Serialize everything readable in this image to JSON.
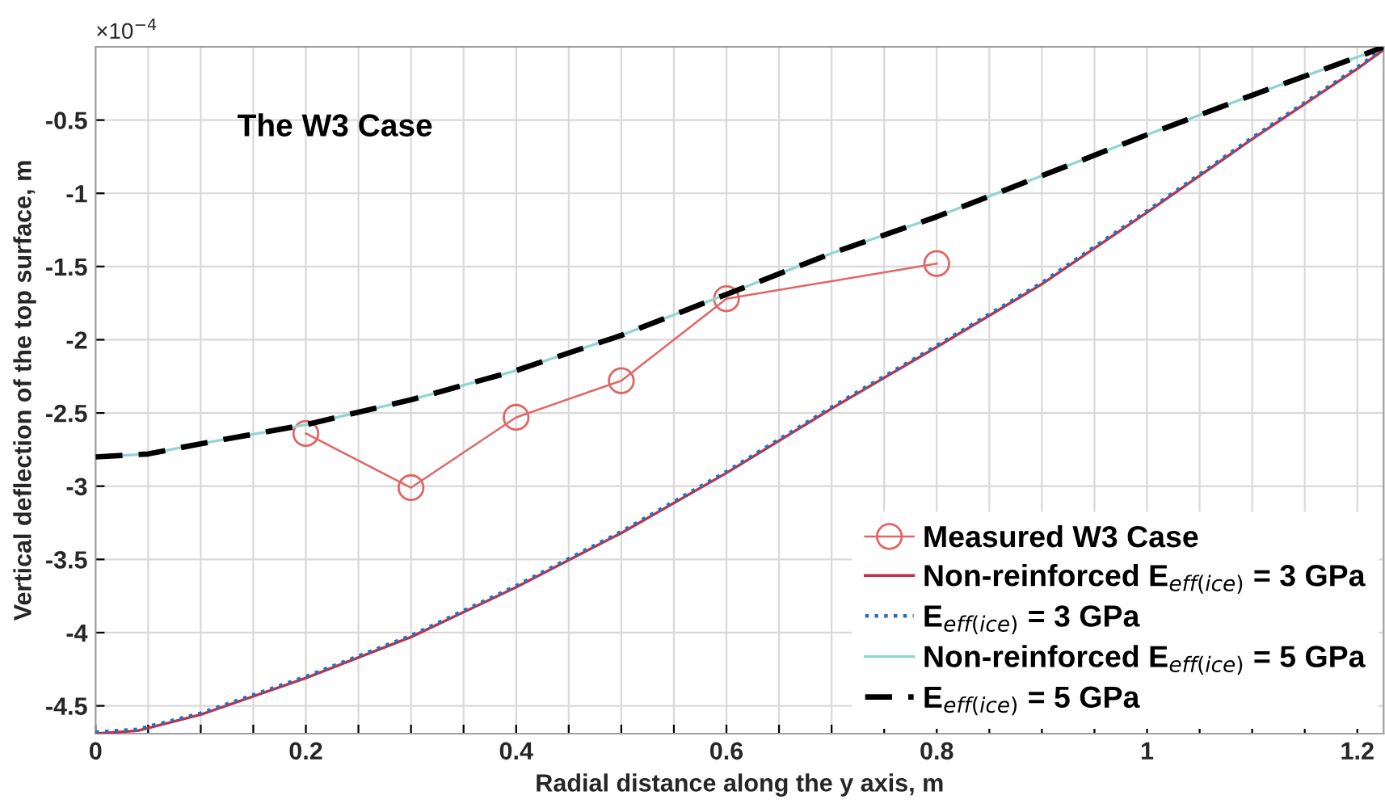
{
  "chart_data": {
    "type": "line",
    "title": "The W3 Case",
    "xlabel": "Radial distance along the y axis, m",
    "ylabel": "Vertical deflection of the top surface, m",
    "annotations": [
      "×10$^{−4}$"
    ],
    "xlim": [
      0,
      1.225
    ],
    "ylim": [
      -4.69,
      0
    ],
    "xticks": [
      0,
      {
        "value": 0.05,
        "label": null
      },
      {
        "value": 0.1,
        "label": null
      },
      {
        "value": 0.15,
        "label": null
      },
      0.2,
      {
        "value": 0.25,
        "label": null
      },
      {
        "value": 0.3,
        "label": null
      },
      {
        "value": 0.35,
        "label": null
      },
      0.4,
      {
        "value": 0.45,
        "label": null
      },
      {
        "value": 0.5,
        "label": null
      },
      {
        "value": 0.55,
        "label": null
      },
      0.6,
      {
        "value": 0.65,
        "label": null
      },
      {
        "value": 0.7,
        "label": null
      },
      {
        "value": 0.75,
        "label": null
      },
      0.8,
      {
        "value": 0.85,
        "label": null
      },
      {
        "value": 0.9,
        "label": null
      },
      {
        "value": 0.95,
        "label": null
      },
      1,
      {
        "value": 1.05,
        "label": null
      },
      {
        "value": 1.1,
        "label": null
      },
      {
        "value": 1.15,
        "label": null
      },
      1.2
    ],
    "yticks": [
      -4.5,
      -4,
      -3.5,
      -3,
      -2.5,
      -2,
      -1.5,
      -1,
      -0.5
    ],
    "grid": true,
    "legend": "bottom right",
    "series": [
      {
        "name": "Measured W3 Case",
        "color": "#e06666",
        "marker": "circle",
        "line_style": "solid",
        "x": [
          0.2,
          0.3,
          0.4,
          0.5,
          0.6,
          0.8
        ],
        "values": [
          -2.64,
          -3.01,
          -2.53,
          -2.28,
          -1.72,
          -1.48
        ]
      },
      {
        "name": "Non-reinforced E$_{eff(ice)}$ = 3 GPa",
        "color": "#c0304a",
        "marker": "none",
        "line_style": "solid",
        "x": [
          0,
          0.04,
          0.1,
          0.2,
          0.3,
          0.4,
          0.5,
          0.6,
          0.7,
          0.8,
          0.9,
          1.0,
          1.1,
          1.2,
          1.225
        ],
        "values": [
          -4.69,
          -4.67,
          -4.56,
          -4.31,
          -4.03,
          -3.69,
          -3.32,
          -2.91,
          -2.47,
          -2.05,
          -1.62,
          -1.13,
          -0.63,
          -0.15,
          -0.02
        ]
      },
      {
        "name": "E$_{eff(ice)}$ = 3 GPa",
        "color": "#2a6fb5",
        "marker": "none",
        "line_style": "dotted",
        "x": [
          0,
          0.04,
          0.1,
          0.2,
          0.3,
          0.4,
          0.5,
          0.6,
          0.7,
          0.8,
          0.9,
          1.0,
          1.1,
          1.2,
          1.225
        ],
        "values": [
          -4.68,
          -4.66,
          -4.55,
          -4.3,
          -4.02,
          -3.68,
          -3.31,
          -2.9,
          -2.46,
          -2.04,
          -1.61,
          -1.12,
          -0.62,
          -0.14,
          -0.01
        ]
      },
      {
        "name": "Non-reinforced E$_{eff(ice)}$ = 5 GPa",
        "color": "#8fd6d0",
        "marker": "none",
        "line_style": "solid",
        "x": [
          0,
          0.05,
          0.1,
          0.2,
          0.3,
          0.4,
          0.5,
          0.6,
          0.7,
          0.8,
          0.9,
          1.0,
          1.1,
          1.2,
          1.225
        ],
        "values": [
          -2.8,
          -2.78,
          -2.71,
          -2.58,
          -2.41,
          -2.21,
          -1.97,
          -1.69,
          -1.41,
          -1.16,
          -0.88,
          -0.6,
          -0.33,
          -0.07,
          0
        ]
      },
      {
        "name": "E$_{eff(ice)}$ = 5 GPa",
        "color": "#000000",
        "marker": "none",
        "line_style": "dashed",
        "x": [
          0,
          0.05,
          0.1,
          0.2,
          0.3,
          0.4,
          0.5,
          0.6,
          0.7,
          0.8,
          0.9,
          1.0,
          1.1,
          1.2,
          1.225
        ],
        "values": [
          -2.8,
          -2.78,
          -2.71,
          -2.58,
          -2.41,
          -2.21,
          -1.97,
          -1.69,
          -1.41,
          -1.16,
          -0.88,
          -0.6,
          -0.33,
          -0.07,
          0
        ]
      }
    ]
  }
}
